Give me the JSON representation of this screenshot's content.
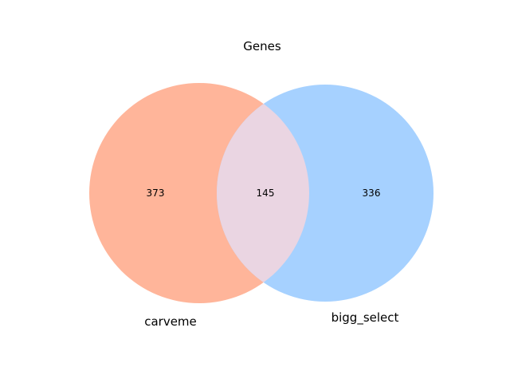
{
  "title": "Genes",
  "sets": [
    {
      "name": "carveme",
      "only_count": "373",
      "color": "#ffb59a"
    },
    {
      "name": "bigg_select",
      "only_count": "336",
      "color": "#a6d1ff"
    }
  ],
  "intersection": {
    "count": "145",
    "color": "#ead5e2"
  }
}
